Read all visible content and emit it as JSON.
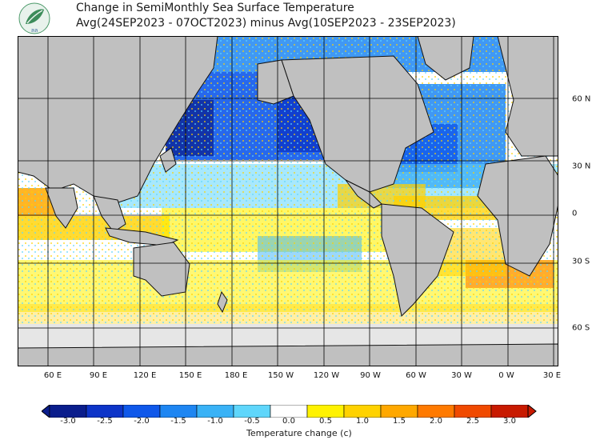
{
  "title": {
    "line1": "Change in SemiMonthly Sea Surface Temperature",
    "line2": "Avg(24SEP2023 - 07OCT2023) minus Avg(10SEP2023 - 23SEP2023)"
  },
  "logo": {
    "icon": "leaf-logo-icon",
    "text": "ลล"
  },
  "map": {
    "projection": "equirectangular",
    "lon_range": [
      40,
      400
    ],
    "lat_range": [
      -80,
      80
    ],
    "lon_labels": [
      "60 E",
      "90 E",
      "120 E",
      "150 E",
      "180 E",
      "150 W",
      "120 W",
      "90 W",
      "60 W",
      "30 W",
      "0 W",
      "30 E"
    ],
    "lat_labels": [
      "60 N",
      "30 N",
      "0",
      "30 S",
      "60 S"
    ],
    "land_color": "#c0c0c0",
    "ice_color": "#e6e6e6"
  },
  "colorbar": {
    "title": "Temperature change  (c)",
    "ticks": [
      "-3.0",
      "-2.5",
      "-2.0",
      "-1.5",
      "-1.0",
      "-0.5",
      "0.0",
      "0.5",
      "1.0",
      "1.5",
      "2.0",
      "2.5",
      "3.0"
    ],
    "colors": [
      "#0a1d8c",
      "#0d34c8",
      "#0f58ea",
      "#1e86f2",
      "#39b2f6",
      "#5fd6fb",
      "#ffffff",
      "#fff200",
      "#ffd200",
      "#ffa800",
      "#ff7a00",
      "#f04a00",
      "#c81a00"
    ]
  }
}
